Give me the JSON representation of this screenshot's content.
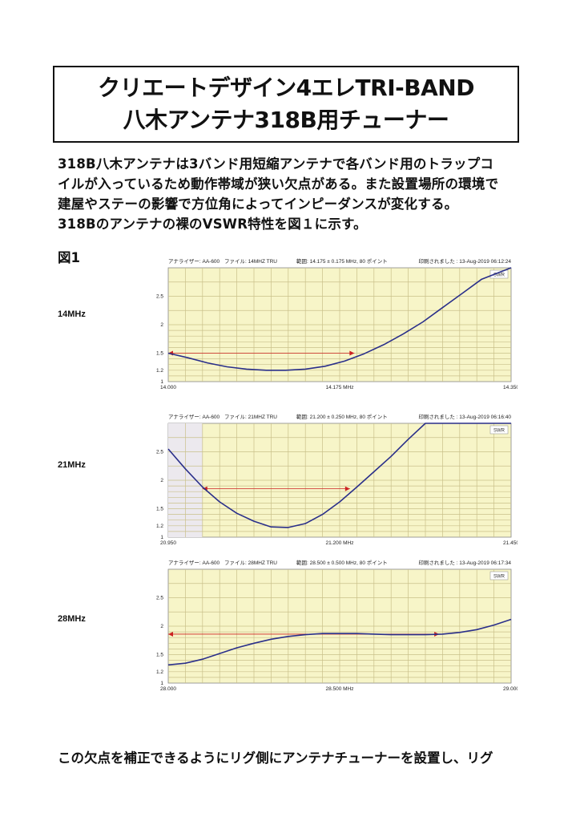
{
  "title": {
    "line1": "クリエートデザイン4エレTRI-BAND",
    "line2": "八木アンテナ318B用チューナー"
  },
  "paragraph": [
    "318B八木アンテナは3バンド用短縮アンテナで各バンド用のトラップコ",
    "イルが入っているため動作帯域が狭い欠点がある。また設置場所の環境で",
    "建屋やステーの影響で方位角によってインピーダンスが変化する。",
    "318Bのアンテナの裸のVSWR特性を図１に示す。"
  ],
  "figure_label": "図1",
  "footer_text": "この欠点を補正できるようにリグ側にアンテナチューナーを設置し、リグ",
  "colors": {
    "grid_bg": "#f7f5c8",
    "grid_line": "#c9c08a",
    "curve": "#2a2f8a",
    "marker": "#cc2222"
  },
  "chart_data": [
    {
      "type": "line",
      "band_label": "14MHz",
      "header": {
        "analyzer": "アナライザー: AA-600",
        "file": "ファイル: 14MHZ TRU",
        "range": "範囲:  14.175 ± 0.175 MHz, 80 ポイント",
        "printed": "印刷されました : 13-Aug-2019 06:12:24"
      },
      "legend": "SWR",
      "xlim": [
        14.0,
        14.35
      ],
      "x_ticks": [
        "14.000",
        "14.175 MHz",
        "14.350"
      ],
      "ylim": [
        1,
        3
      ],
      "y_ticks": [
        1,
        1.2,
        1.5,
        2,
        2.5
      ],
      "shade_to": null,
      "marker": {
        "y": 1.5,
        "x1": 14.0,
        "x2": 14.19
      },
      "x": [
        14.0,
        14.02,
        14.04,
        14.06,
        14.08,
        14.1,
        14.12,
        14.14,
        14.16,
        14.18,
        14.2,
        14.22,
        14.24,
        14.26,
        14.28,
        14.3,
        14.32,
        14.35
      ],
      "values": [
        1.5,
        1.42,
        1.33,
        1.26,
        1.22,
        1.2,
        1.2,
        1.22,
        1.27,
        1.36,
        1.49,
        1.65,
        1.84,
        2.05,
        2.3,
        2.55,
        2.8,
        3.0
      ]
    },
    {
      "type": "line",
      "band_label": "21MHz",
      "header": {
        "analyzer": "アナライザー: AA-600",
        "file": "ファイル: 21MHZ TRU",
        "range": "範囲:  21.200 ± 0.250 MHz, 80 ポイント",
        "printed": "印刷されました : 13-Aug-2019 06:16:40"
      },
      "legend": "SWR",
      "xlim": [
        20.95,
        21.45
      ],
      "x_ticks": [
        "20.950",
        "21.200 MHz",
        "21.450"
      ],
      "ylim": [
        1,
        3
      ],
      "y_ticks": [
        1,
        1.2,
        1.5,
        2,
        2.5
      ],
      "shade_to": 21.0,
      "marker": {
        "y": 1.85,
        "x1": 21.0,
        "x2": 21.215
      },
      "x": [
        20.95,
        20.975,
        21.0,
        21.025,
        21.05,
        21.075,
        21.1,
        21.125,
        21.15,
        21.175,
        21.2,
        21.225,
        21.25,
        21.275,
        21.3,
        21.325,
        21.35,
        21.375,
        21.4,
        21.425,
        21.45
      ],
      "values": [
        2.55,
        2.2,
        1.88,
        1.62,
        1.42,
        1.28,
        1.18,
        1.17,
        1.24,
        1.4,
        1.62,
        1.88,
        2.15,
        2.42,
        2.72,
        3.0,
        3.0,
        3.0,
        3.0,
        3.0,
        3.0
      ]
    },
    {
      "type": "line",
      "band_label": "28MHz",
      "header": {
        "analyzer": "アナライザー: AA-600",
        "file": "ファイル: 28MHZ TRU",
        "range": "範囲:  28.500 ± 0.500 MHz, 80 ポイント",
        "printed": "印刷されました : 13-Aug-2019 06:17:34"
      },
      "legend": "SWR",
      "xlim": [
        28.0,
        29.0
      ],
      "x_ticks": [
        "28.000",
        "28.500 MHz",
        "29.000"
      ],
      "ylim": [
        1,
        3
      ],
      "y_ticks": [
        1,
        1.2,
        1.5,
        2,
        2.5
      ],
      "shade_to": null,
      "marker": {
        "y": 1.86,
        "x1": 28.0,
        "x2": 28.79
      },
      "x": [
        28.0,
        28.05,
        28.1,
        28.15,
        28.2,
        28.25,
        28.3,
        28.35,
        28.4,
        28.45,
        28.5,
        28.55,
        28.6,
        28.65,
        28.7,
        28.75,
        28.8,
        28.85,
        28.9,
        28.95,
        29.0
      ],
      "values": [
        1.32,
        1.35,
        1.42,
        1.52,
        1.62,
        1.7,
        1.77,
        1.82,
        1.85,
        1.87,
        1.87,
        1.87,
        1.86,
        1.85,
        1.85,
        1.85,
        1.86,
        1.89,
        1.94,
        2.02,
        2.12
      ]
    }
  ]
}
